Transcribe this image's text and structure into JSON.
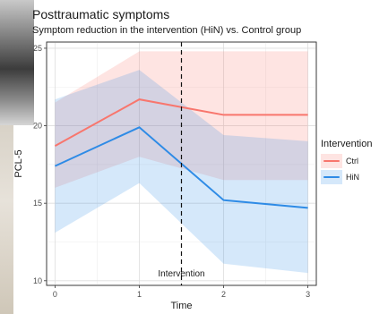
{
  "chart_data": {
    "type": "line",
    "title": "Posttraumatic symptoms",
    "subtitle": "Symptom reduction in the intervention (HiN) vs. Control group",
    "xlabel": "Time",
    "ylabel": "PCL-5",
    "x": [
      0,
      1,
      2,
      3
    ],
    "x_tick_labels": [
      "0",
      "1",
      "2",
      "3"
    ],
    "xlim": [
      -0.1,
      3.1
    ],
    "ylim": [
      9.7,
      25.4
    ],
    "y_ticks": [
      10,
      15,
      20,
      25
    ],
    "y_tick_labels": [
      "10",
      "15",
      "20",
      "25"
    ],
    "grid": true,
    "legend": {
      "title": "Intervention",
      "position": "right"
    },
    "series": [
      {
        "name": "Ctrl",
        "color": "#f8766d",
        "values": [
          18.7,
          21.7,
          20.7,
          20.7
        ],
        "lower": [
          16.0,
          18.0,
          16.5,
          16.5
        ],
        "upper": [
          21.5,
          24.8,
          24.8,
          24.8
        ]
      },
      {
        "name": "HiN",
        "color": "#2e8be6",
        "values": [
          17.4,
          19.9,
          15.2,
          14.7
        ],
        "lower": [
          13.1,
          16.3,
          11.1,
          10.5
        ],
        "upper": [
          21.7,
          23.6,
          19.4,
          19.0
        ]
      }
    ],
    "annotations": [
      {
        "type": "vline",
        "x": 1.5,
        "label": "Intervention",
        "label_y": 10.5,
        "style": "dashed"
      }
    ]
  }
}
